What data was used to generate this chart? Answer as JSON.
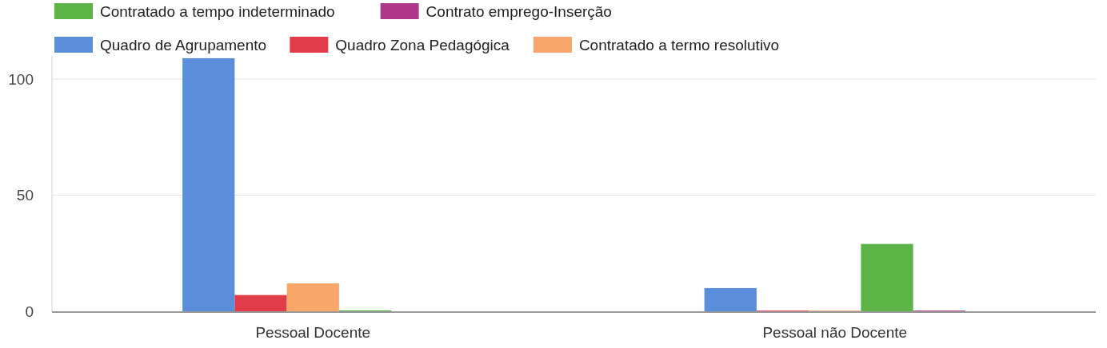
{
  "chart_data": {
    "type": "bar",
    "categories": [
      "Pessoal Docente",
      "Pessoal não Docente"
    ],
    "series": [
      {
        "name": "Quadro de Agrupamento",
        "color": "#5b8fdc",
        "values": [
          109,
          10
        ]
      },
      {
        "name": "Quadro Zona Pedagógica",
        "color": "#e03c4a",
        "values": [
          7,
          0.3
        ]
      },
      {
        "name": "Contratado a termo resolutivo",
        "color": "#f9a66b",
        "values": [
          12,
          0.3
        ]
      },
      {
        "name": "Contratado a tempo indeterminado",
        "color": "#5cb346",
        "values": [
          0.4,
          29
        ]
      },
      {
        "name": "Contrato emprego-Inserção",
        "color": "#b0388a",
        "values": [
          0,
          0.3
        ]
      }
    ],
    "ylim": [
      0,
      110
    ],
    "yticks": [
      0,
      50,
      100
    ],
    "grid": "y",
    "legend": "top"
  }
}
